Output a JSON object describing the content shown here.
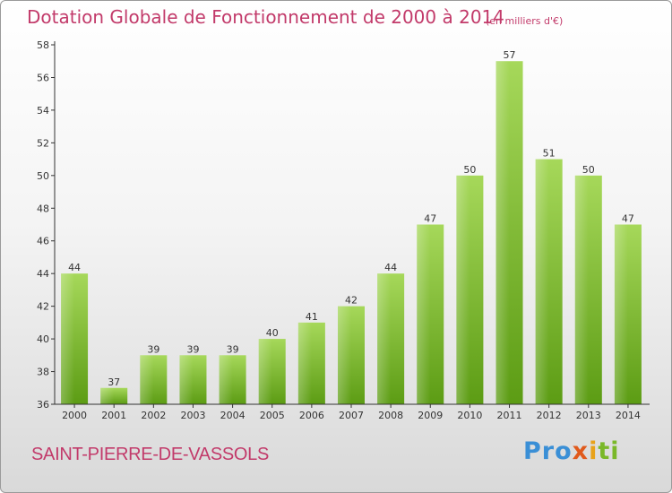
{
  "chart_data": {
    "type": "bar",
    "title": "Dotation Globale de Fonctionnement de 2000 à 2014",
    "subtitle": "(en milliers d'€)",
    "xlabel": "",
    "ylabel": "",
    "categories": [
      "2000",
      "2001",
      "2002",
      "2003",
      "2004",
      "2005",
      "2006",
      "2007",
      "2008",
      "2009",
      "2010",
      "2011",
      "2012",
      "2013",
      "2014"
    ],
    "values": [
      44,
      37,
      39,
      39,
      39,
      40,
      41,
      42,
      44,
      47,
      50,
      57,
      51,
      50,
      47
    ],
    "ylim": [
      36,
      58
    ],
    "yticks": [
      36,
      38,
      40,
      42,
      44,
      46,
      48,
      50,
      52,
      54,
      56,
      58
    ],
    "grid": false
  },
  "footer": {
    "commune": "SAINT-PIERRE-DE-VASSOLS",
    "logo_parts": [
      "Pro",
      "x",
      "i",
      "ti"
    ]
  },
  "colors": {
    "title": "#c23a6a",
    "bar_light": "#9ed24e",
    "bar_dark": "#5a9a12",
    "axis": "#333333"
  }
}
